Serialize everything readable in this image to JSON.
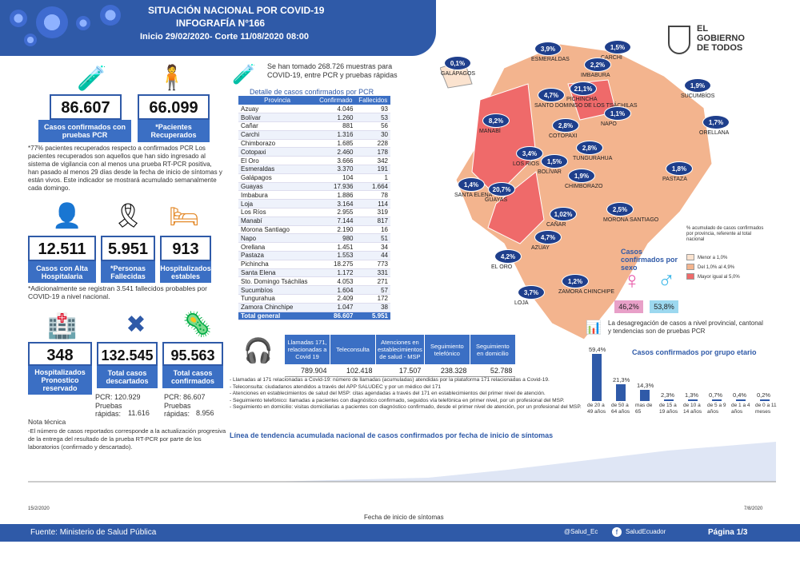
{
  "header": {
    "title": "SITUACIÓN NACIONAL POR  COVID-19",
    "subtitle": "INFOGRAFÍA N°166",
    "dates": "Inicio 29/02/2020- Corte 11/08/2020 08:00"
  },
  "logo": {
    "line1": "EL",
    "line2": "GOBIERNO",
    "line3": "DE TODOS"
  },
  "stats": {
    "pcr_confirmed": "86.607",
    "pcr_confirmed_label": "Casos confirmados con pruebas PCR",
    "recovered": "66.099",
    "recovered_label": "*Pacientes Recuperados",
    "recovered_note": "*77% pacientes recuperados respecto a confirmados PCR Los pacientes recuperados son aquellos que han sido ingresado al sistema de vigilancia con al menos una prueba RT-PCR positiva, han pasado al menos 29 días desde la fecha de inicio de síntomas y están vivos. Este indicador se mostrará acumulado semanalmente cada domingo.",
    "discharged": "12.511",
    "discharged_label": "Casos con Alta Hospitalaria",
    "deceased": "5.951",
    "deceased_label": "*Personas Fallecidas",
    "hosp_stable": "913",
    "hosp_stable_label": "Hospitalizados estables",
    "deaths_note": "*Adicionalmente se registran  3.541 fallecidos probables por COVID-19 a nivel nacional.",
    "hosp_reserved": "348",
    "hosp_reserved_label": "Hospitalizados Pronostico reservado",
    "discarded": "132.545",
    "discarded_label": "Total casos descartados",
    "discarded_pcr": "PCR: 120.929",
    "discarded_rapid_label": "Pruebas rápidas:",
    "discarded_rapid": "11.616",
    "confirmed_total": "95.563",
    "confirmed_total_label": "Total casos confirmados",
    "confirmed_pcr": "PCR: 86.607",
    "confirmed_rapid_label": "Pruebas rápidas:",
    "confirmed_rapid": "8.956"
  },
  "tech_note": {
    "title": "Nota técnica",
    "body": "-El número de casos reportados corresponde a la actualización progresiva de la entrega del resultado de la prueba RT-PCR por parte de los laboratorios (confirmado y descartado)."
  },
  "samples": "Se han tomado 268.726 muestras para COVID-19, entre PCR y pruebas rápidas",
  "table": {
    "title": "Detalle de casos confirmados por PCR",
    "headers": [
      "Provincia",
      "Confirmado",
      "Fallecidos"
    ],
    "rows": [
      [
        "Azuay",
        "4.046",
        "93"
      ],
      [
        "Bolívar",
        "1.260",
        "53"
      ],
      [
        "Cañar",
        "881",
        "56"
      ],
      [
        "Carchi",
        "1.316",
        "30"
      ],
      [
        "Chimborazo",
        "1.685",
        "228"
      ],
      [
        "Cotopaxi",
        "2.460",
        "178"
      ],
      [
        "El Oro",
        "3.666",
        "342"
      ],
      [
        "Esmeraldas",
        "3.370",
        "191"
      ],
      [
        "Galápagos",
        "104",
        "1"
      ],
      [
        "Guayas",
        "17.936",
        "1.664"
      ],
      [
        "Imbabura",
        "1.886",
        "78"
      ],
      [
        "Loja",
        "3.164",
        "114"
      ],
      [
        "Los Ríos",
        "2.955",
        "319"
      ],
      [
        "Manabí",
        "7.144",
        "817"
      ],
      [
        "Morona Santiago",
        "2.190",
        "16"
      ],
      [
        "Napo",
        "980",
        "51"
      ],
      [
        "Orellana",
        "1.451",
        "34"
      ],
      [
        "Pastaza",
        "1.553",
        "44"
      ],
      [
        "Pichincha",
        "18.275",
        "773"
      ],
      [
        "Santa Elena",
        "1.172",
        "331"
      ],
      [
        "Sto. Domingo Tsáchilas",
        "4.053",
        "271"
      ],
      [
        "Sucumbíos",
        "1.604",
        "57"
      ],
      [
        "Tungurahua",
        "2.409",
        "172"
      ],
      [
        "Zamora Chinchipe",
        "1.047",
        "38"
      ]
    ],
    "total": [
      "Total general",
      "86.607",
      "5.951"
    ]
  },
  "calls": {
    "headers": [
      "Llamadas 171, relacionadas a Covid 19",
      "Teleconsulta",
      "Atenciones en establecimientos de salud - MSP",
      "Seguimiento telefónico",
      "Seguimiento en domicilio"
    ],
    "values": [
      "789.904",
      "102.418",
      "17.507",
      "238.328",
      "52.788"
    ],
    "notes": [
      "- Llamadas al 171 relacionadas a Covid-19: número de llamadas (acumuladas) atendidas por la plataforma 171 relacionadas a Covid-19.",
      "- Teleconsulta: ciudadanos atendidos a través del APP SALUDEC y por un médico del 171",
      "- Atenciones en establecimientos de salud del MSP:  citas agendadas a través del 171 en establecimientos del primer nivel de atención.",
      "- Seguimiento telefónico: llamadas a pacientes con diagnóstico confirmado, seguidos vía telefónica en primer nivel, por un profesional del MSP.",
      "- Seguimiento en domicilio: visitas domiciliarias a pacientes con diagnóstico confirmado, desde el primer nivel de atención, por un profesional del MSP."
    ]
  },
  "map": {
    "bubbles": [
      {
        "v": "0,1%",
        "p": "GALÁPAGOS"
      },
      {
        "v": "3,9%",
        "p": "ESMERALDAS"
      },
      {
        "v": "1,5%",
        "p": "CARCHI"
      },
      {
        "v": "2,2%",
        "p": "IMBABURA"
      },
      {
        "v": "21,1%",
        "p": "PICHINCHA"
      },
      {
        "v": "4,7%",
        "p": "SANTO DOMINGO DE LOS TSÁCHILAS"
      },
      {
        "v": "1,9%",
        "p": "SUCUMBÍOS"
      },
      {
        "v": "8,2%",
        "p": "MANABÍ"
      },
      {
        "v": "1,1%",
        "p": "NAPO"
      },
      {
        "v": "2,8%",
        "p": "COTOPAXI"
      },
      {
        "v": "1,7%",
        "p": "ORELLANA"
      },
      {
        "v": "3,4%",
        "p": "LOS RÍOS"
      },
      {
        "v": "1,5%",
        "p": "BOLÍVAR"
      },
      {
        "v": "2,8%",
        "p": "TUNGURAHUA"
      },
      {
        "v": "1,8%",
        "p": "PASTAZA"
      },
      {
        "v": "1,4%",
        "p": "SANTA ELENA"
      },
      {
        "v": "20,7%",
        "p": "GUAYAS"
      },
      {
        "v": "1,9%",
        "p": "CHIMBORAZO"
      },
      {
        "v": "1,02%",
        "p": "CAÑAR"
      },
      {
        "v": "2,5%",
        "p": "MORONA SANTIAGO"
      },
      {
        "v": "4,7%",
        "p": "AZUAY"
      },
      {
        "v": "4,2%",
        "p": "EL ORO"
      },
      {
        "v": "3,7%",
        "p": "LOJA"
      },
      {
        "v": "1,2%",
        "p": "ZAMORA CHINCHIPE"
      }
    ],
    "legend_title": "% acumulado de casos confirmados por provincia, referente al total nacional",
    "legend": [
      {
        "label": "Menor a 1,0%",
        "color": "#fbe3cf"
      },
      {
        "label": "Del 1,0% al 4,9%",
        "color": "#f3b48e"
      },
      {
        "label": "Mayor igual al 5,0%",
        "color": "#ef6a6a"
      }
    ]
  },
  "sex": {
    "title": "Casos confirmados por sexo",
    "female": "46,2%",
    "male": "53,8%"
  },
  "disaggregation": "La desagregación de casos a nivel provincial, cantonal y tendencias son  de pruebas PCR",
  "age_chart": {
    "title": "Casos confirmados por grupo etario"
  },
  "chart_data": [
    {
      "type": "bar",
      "title": "Casos confirmados por grupo etario",
      "categories": [
        "de 20 a 49 años",
        "de 50 a 64 años",
        "mas de 65",
        "de 15 a 19 años",
        "de 10 a 14 años",
        "de 5 a 9 años",
        "de 1 a 4 años",
        "de 0 a 11 meses"
      ],
      "values": [
        59.4,
        21.3,
        14.3,
        2.3,
        1.3,
        0.7,
        0.4,
        0.2
      ],
      "labels": [
        "59,4%",
        "21,3%",
        "14,3%",
        "2,3%",
        "1,3%",
        "0,7%",
        "0,4%",
        "0,2%"
      ],
      "ylim": [
        0,
        60
      ]
    },
    {
      "type": "area",
      "title": "Línea de tendencia acumulada nacional de casos confirmados por fecha de inicio de síntomas",
      "xlabel": "Fecha de inicio de síntomas",
      "x_start": "15/2/2020",
      "x_end": "7/8/2020"
    }
  ],
  "trend": {
    "title": "Línea de tendencia acumulada nacional de casos confirmados por fecha de inicio de síntomas",
    "xlabel": "Fecha de inicio de síntomas",
    "first": "15/2/2020",
    "last": "7/8/2020"
  },
  "footer": {
    "source": "Fuente:  Ministerio de Salud Pública",
    "twitter": "@Salud_Ec",
    "facebook": "SaludEcuador",
    "page": "Página 1/3"
  }
}
